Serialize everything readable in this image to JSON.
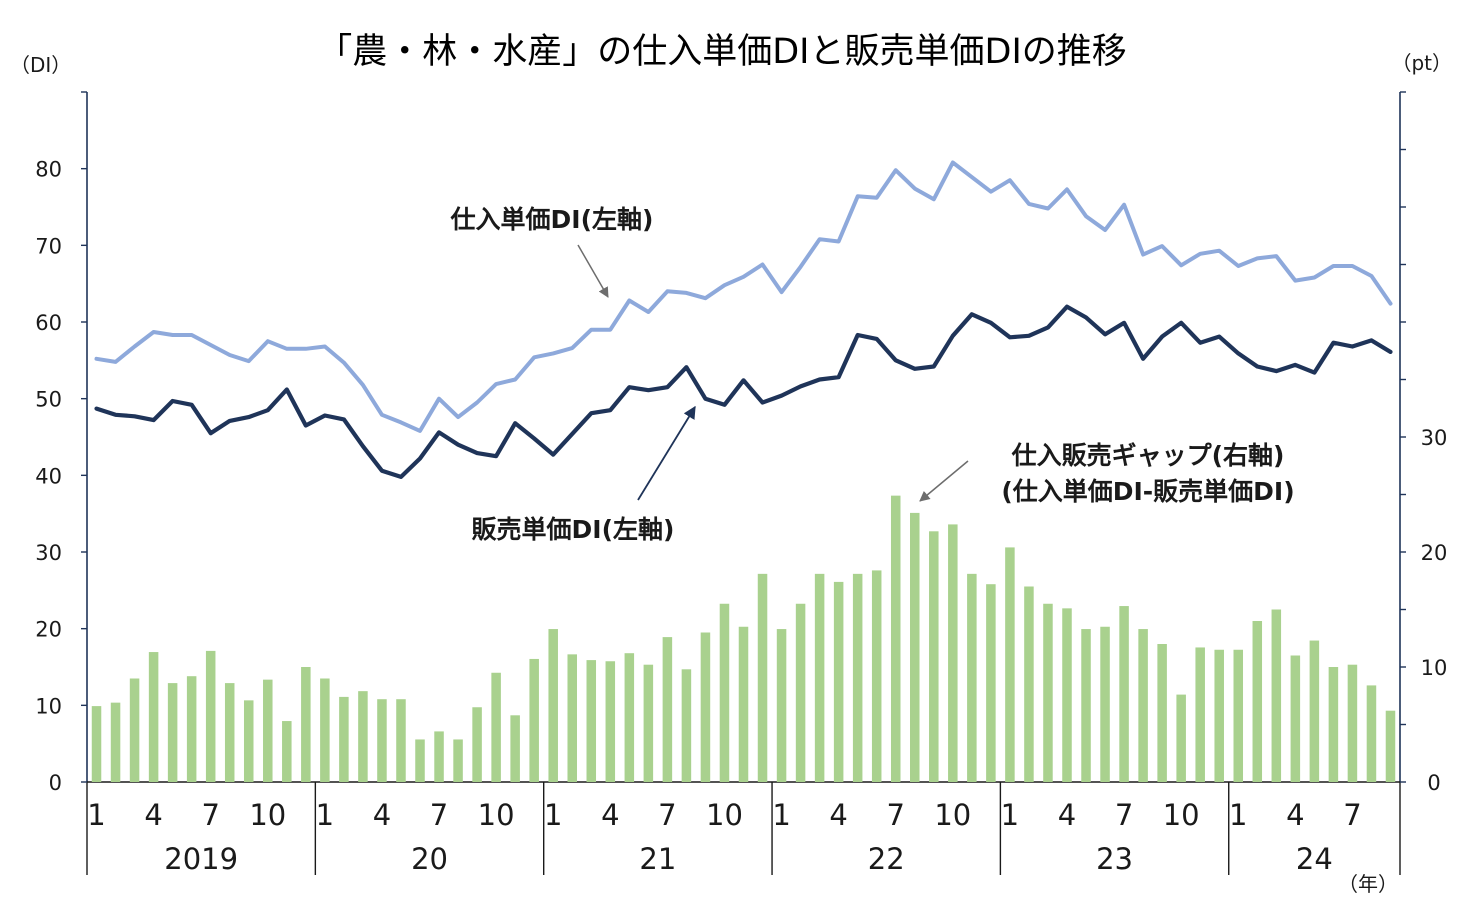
{
  "chart_data": {
    "type": "bar+line",
    "title": "「農・林・水産」の仕入単価DIと販売単価DIの推移",
    "left_axis_unit": "（DI）",
    "right_axis_unit": "（pt）",
    "year_unit": "（年）",
    "ylim_left": [
      0,
      90
    ],
    "yticks_left": [
      "0",
      "10",
      "20",
      "30",
      "40",
      "50",
      "60",
      "70",
      "80"
    ],
    "ylim_right": [
      0,
      60
    ],
    "yticks_right": [
      "0",
      "10",
      "20",
      "30"
    ],
    "month_ticks": [
      "1",
      "4",
      "7",
      "10"
    ],
    "years": [
      "2019",
      "20",
      "21",
      "22",
      "23",
      "24"
    ],
    "x_months": 69,
    "series": [
      {
        "name": "仕入単価DI",
        "axis": "left",
        "kind": "line",
        "color": "#8ea9db",
        "values": [
          55.2,
          54.8,
          56.8,
          58.7,
          58.3,
          58.3,
          57.0,
          55.7,
          54.9,
          57.5,
          56.5,
          56.5,
          56.8,
          54.7,
          51.8,
          47.9,
          46.9,
          45.8,
          50.0,
          47.6,
          49.5,
          51.9,
          52.5,
          55.4,
          55.9,
          56.6,
          59.0,
          59.0,
          62.8,
          61.3,
          64.0,
          63.8,
          63.1,
          64.8,
          65.9,
          67.5,
          63.9,
          67.2,
          70.8,
          70.5,
          76.4,
          76.2,
          79.8,
          77.4,
          76.0,
          80.8,
          78.9,
          77.0,
          78.5,
          75.4,
          74.8,
          77.3,
          73.8,
          72.0,
          75.3,
          68.8,
          69.9,
          67.4,
          68.9,
          69.3,
          67.3,
          68.3,
          68.6,
          65.4,
          65.8,
          67.3,
          67.3,
          66.0,
          62.4
        ]
      },
      {
        "name": "販売単価DI",
        "axis": "left",
        "kind": "line",
        "color": "#1f3459",
        "values": [
          48.7,
          47.9,
          47.7,
          47.2,
          49.7,
          49.2,
          45.5,
          47.1,
          47.6,
          48.5,
          51.2,
          46.5,
          47.8,
          47.3,
          43.8,
          40.6,
          39.8,
          42.2,
          45.6,
          44.0,
          42.9,
          42.5,
          46.8,
          44.8,
          42.7,
          45.4,
          48.1,
          48.5,
          51.5,
          51.1,
          51.5,
          54.1,
          50.0,
          49.2,
          52.4,
          49.5,
          50.4,
          51.6,
          52.5,
          52.8,
          58.3,
          57.8,
          55.0,
          53.9,
          54.2,
          58.2,
          61.0,
          59.9,
          58.0,
          58.2,
          59.3,
          62.0,
          60.6,
          58.4,
          59.9,
          55.2,
          58.1,
          59.9,
          57.3,
          58.1,
          55.9,
          54.2,
          53.6,
          54.4,
          53.4,
          57.3,
          56.8,
          57.6,
          56.1
        ]
      },
      {
        "name": "仕入販売ギャップ",
        "axis": "right",
        "kind": "bar",
        "color": "#a9d18e",
        "values": [
          6.6,
          6.9,
          9.0,
          11.3,
          8.6,
          9.2,
          11.4,
          8.6,
          7.1,
          8.9,
          5.3,
          10.0,
          9.0,
          7.4,
          7.9,
          7.2,
          7.2,
          3.7,
          4.4,
          3.7,
          6.5,
          9.5,
          5.8,
          10.7,
          13.3,
          11.1,
          10.6,
          10.5,
          11.2,
          10.2,
          12.6,
          9.8,
          13.0,
          15.5,
          13.5,
          18.1,
          13.3,
          15.5,
          18.1,
          17.4,
          18.1,
          18.4,
          24.9,
          23.4,
          21.8,
          22.4,
          18.1,
          17.2,
          20.4,
          17.0,
          15.5,
          15.1,
          13.3,
          13.5,
          15.3,
          13.3,
          12.0,
          7.6,
          11.7,
          11.5,
          11.5,
          14.0,
          15.0,
          11.0,
          12.3,
          10.0,
          10.2,
          8.4,
          6.2
        ]
      }
    ],
    "annotations": [
      {
        "lines": [
          "仕入単価DI(左軸)"
        ]
      },
      {
        "lines": [
          "販売単価DI(左軸)"
        ]
      },
      {
        "lines": [
          "仕入販売ギャップ(右軸)",
          "(仕入単価DI-販売単価DI)"
        ]
      }
    ],
    "grid": false,
    "legend": "none"
  }
}
